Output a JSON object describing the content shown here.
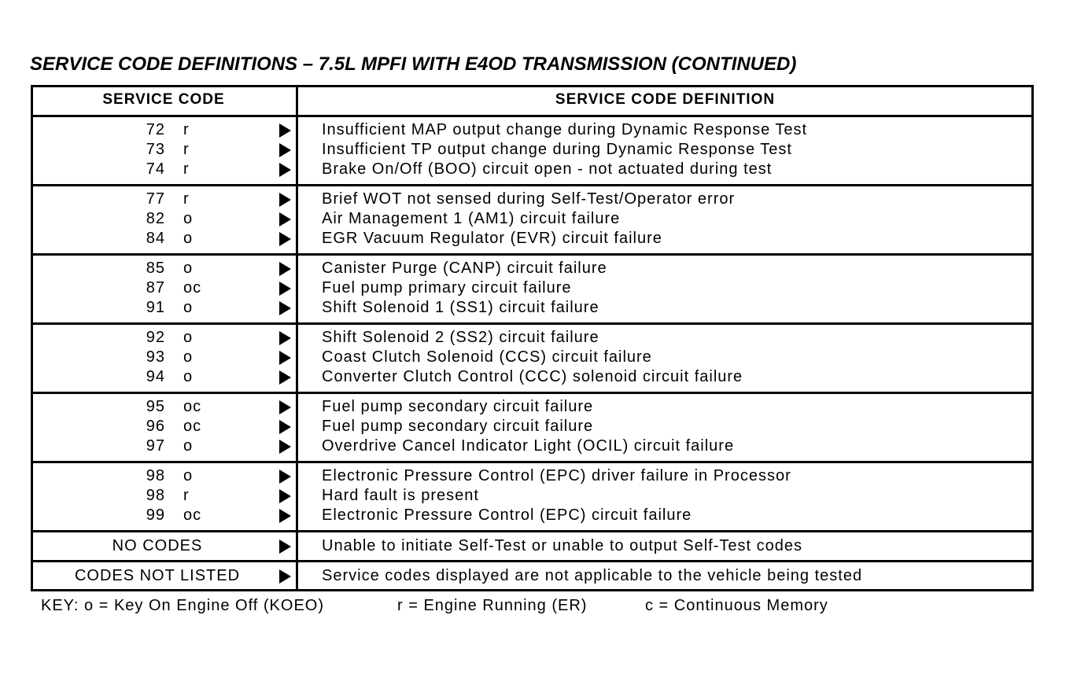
{
  "title": "SERVICE CODE DEFINITIONS  –  7.5L MPFI WITH E4OD TRANSMISSION (CONTINUED)",
  "table": {
    "headers": [
      "SERVICE CODE",
      "SERVICE CODE DEFINITION"
    ],
    "groups": [
      [
        {
          "code": "72",
          "mode": "r",
          "definition": "Insufficient MAP output change during Dynamic Response Test"
        },
        {
          "code": "73",
          "mode": "r",
          "definition": "Insufficient TP output change during Dynamic Response Test"
        },
        {
          "code": "74",
          "mode": "r",
          "definition": "Brake On/Off (BOO) circuit open - not actuated during test"
        }
      ],
      [
        {
          "code": "77",
          "mode": "r",
          "definition": "Brief WOT not sensed during Self-Test/Operator error"
        },
        {
          "code": "82",
          "mode": "o",
          "definition": "Air Management 1 (AM1) circuit failure"
        },
        {
          "code": "84",
          "mode": "o",
          "definition": "EGR Vacuum Regulator (EVR) circuit failure"
        }
      ],
      [
        {
          "code": "85",
          "mode": "o",
          "definition": "Canister Purge (CANP) circuit failure"
        },
        {
          "code": "87",
          "mode": "oc",
          "definition": "Fuel pump primary circuit failure"
        },
        {
          "code": "91",
          "mode": "o",
          "definition": "Shift Solenoid 1 (SS1) circuit failure"
        }
      ],
      [
        {
          "code": "92",
          "mode": "o",
          "definition": "Shift Solenoid 2 (SS2) circuit failure"
        },
        {
          "code": "93",
          "mode": "o",
          "definition": "Coast Clutch Solenoid (CCS) circuit failure"
        },
        {
          "code": "94",
          "mode": "o",
          "definition": "Converter Clutch Control (CCC) solenoid circuit failure"
        }
      ],
      [
        {
          "code": "95",
          "mode": "oc",
          "definition": "Fuel pump secondary circuit failure"
        },
        {
          "code": "96",
          "mode": "oc",
          "definition": "Fuel pump secondary circuit failure"
        },
        {
          "code": "97",
          "mode": "o",
          "definition": "Overdrive Cancel Indicator Light (OCIL) circuit failure"
        }
      ],
      [
        {
          "code": "98",
          "mode": "o",
          "definition": "Electronic Pressure Control (EPC) driver failure in Processor"
        },
        {
          "code": "98",
          "mode": "r",
          "definition": "Hard fault is present"
        },
        {
          "code": "99",
          "mode": "oc",
          "definition": "Electronic Pressure Control (EPC) circuit failure"
        }
      ]
    ],
    "special_rows": [
      {
        "label": "NO CODES",
        "definition": "Unable to initiate Self-Test or unable to output Self-Test codes"
      },
      {
        "label": "CODES NOT LISTED",
        "definition": "Service codes displayed are not applicable to the vehicle being tested"
      }
    ]
  },
  "key": [
    "KEY: o = Key On Engine Off (KOEO)",
    "r = Engine Running (ER)",
    "c = Continuous Memory"
  ]
}
